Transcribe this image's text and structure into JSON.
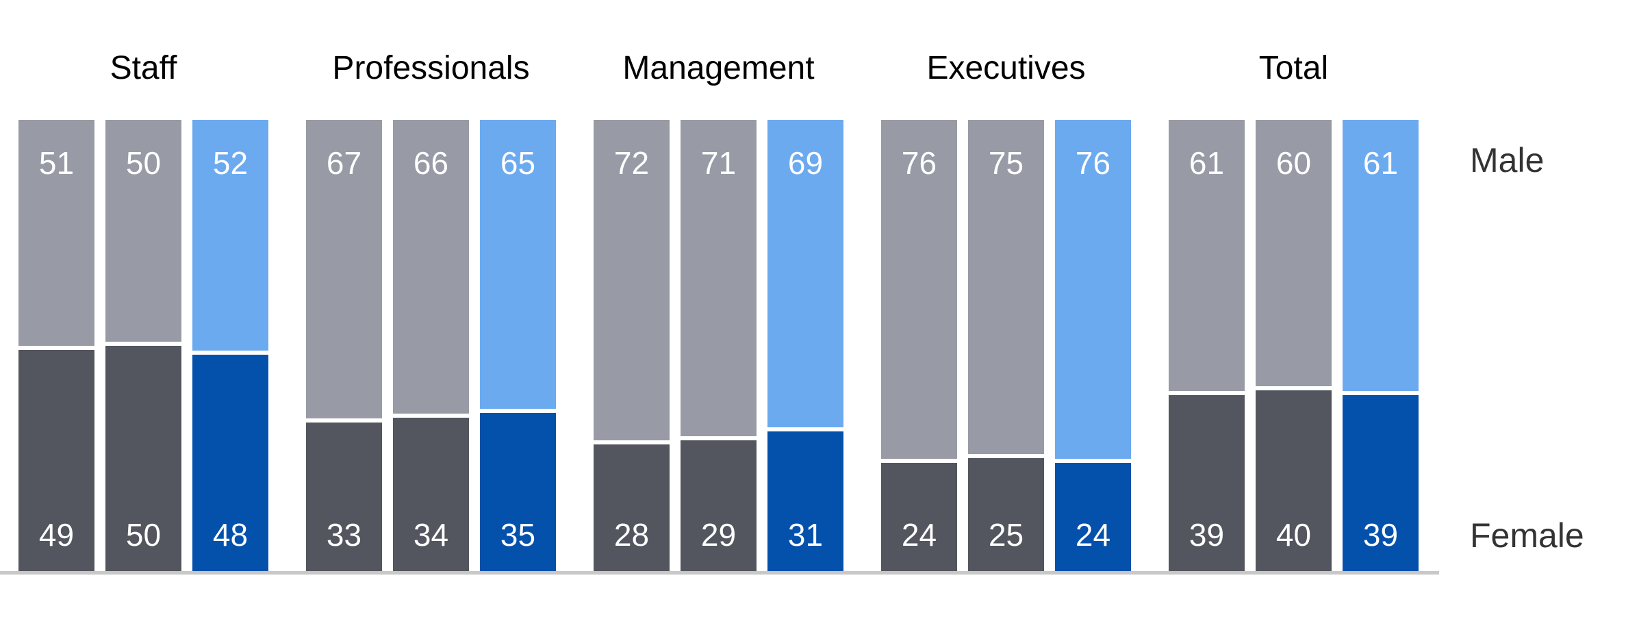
{
  "labels": {
    "male": "Male",
    "female": "Female"
  },
  "colors": {
    "male_gray": "#989BA5",
    "female_gray": "#53565E",
    "male_blue": "#6CAAF0",
    "female_blue": "#0451AC",
    "baseline": "#C8C8C8",
    "title_text": "#000000",
    "side_label_text": "#333333",
    "value_text": "#FFFFFF"
  },
  "chart_data": {
    "type": "bar",
    "subtype": "stacked-percentage-columns",
    "categories": [
      "Staff",
      "Professionals",
      "Management",
      "Executives",
      "Total"
    ],
    "series_labels": [
      "Male",
      "Female"
    ],
    "bars_per_category": 3,
    "ylim": [
      0,
      100
    ],
    "grid": false,
    "legend_position": "right",
    "groups": [
      {
        "label": "Staff",
        "bars": [
          {
            "style": "gray",
            "male": 51,
            "female": 49
          },
          {
            "style": "gray",
            "male": 50,
            "female": 50
          },
          {
            "style": "blue",
            "male": 52,
            "female": 48
          }
        ]
      },
      {
        "label": "Professionals",
        "bars": [
          {
            "style": "gray",
            "male": 67,
            "female": 33
          },
          {
            "style": "gray",
            "male": 66,
            "female": 34
          },
          {
            "style": "blue",
            "male": 65,
            "female": 35
          }
        ]
      },
      {
        "label": "Management",
        "bars": [
          {
            "style": "gray",
            "male": 72,
            "female": 28
          },
          {
            "style": "gray",
            "male": 71,
            "female": 29
          },
          {
            "style": "blue",
            "male": 69,
            "female": 31
          }
        ]
      },
      {
        "label": "Executives",
        "bars": [
          {
            "style": "gray",
            "male": 76,
            "female": 24
          },
          {
            "style": "gray",
            "male": 75,
            "female": 25
          },
          {
            "style": "blue",
            "male": 76,
            "female": 24
          }
        ]
      },
      {
        "label": "Total",
        "bars": [
          {
            "style": "gray",
            "male": 61,
            "female": 39
          },
          {
            "style": "gray",
            "male": 60,
            "female": 40
          },
          {
            "style": "blue",
            "male": 61,
            "female": 39
          }
        ]
      }
    ]
  }
}
